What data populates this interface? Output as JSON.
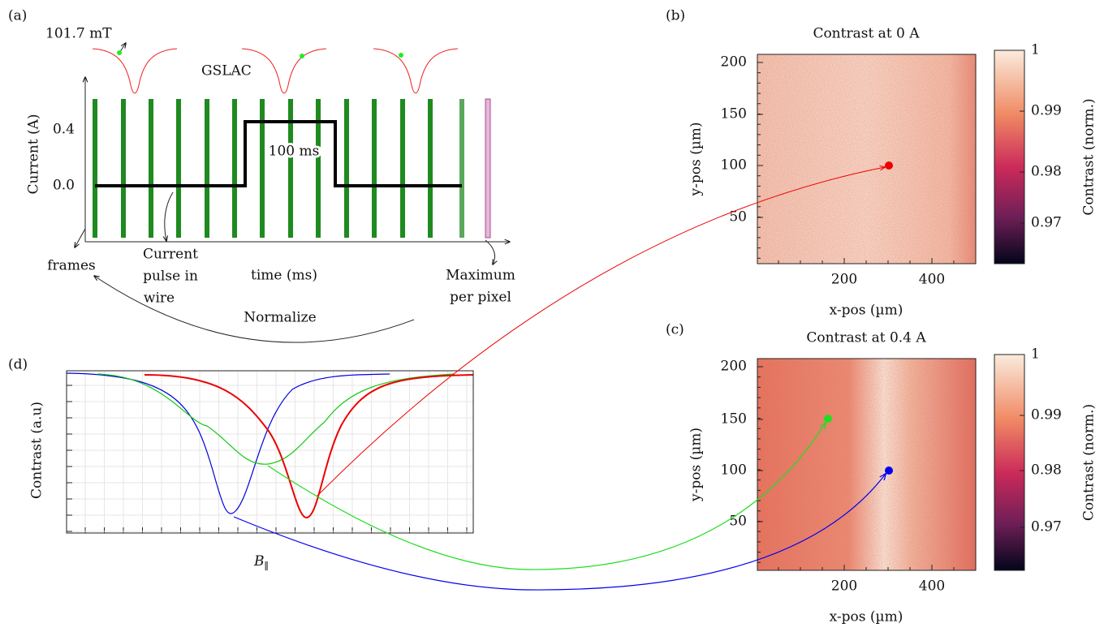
{
  "panel_a": {
    "label": "(a)",
    "field": "101.7 mT",
    "gslac": "GSLAC",
    "y_axis_label": "Current (A)",
    "yticks": [
      "0.4",
      "0.0"
    ],
    "pulse_duration": "100 ms",
    "x_axis_label": "time (ms)",
    "frames": "frames",
    "pulse_note": [
      "Current",
      "pulse in",
      "wire"
    ],
    "maximum_note": [
      "Maximum",
      "per pixel"
    ],
    "normalize": "Normalize"
  },
  "panel_b": {
    "label": "(b)",
    "title": "Contrast at 0 A",
    "x_axis_label": "x-pos (µm)",
    "y_axis_label": "y-pos (µm)",
    "xticks": [
      "200",
      "400"
    ],
    "yticks": [
      "200",
      "150",
      "100",
      "50"
    ],
    "colorbar_label": "Contrast (norm.)",
    "colorbar_ticks": [
      "1",
      "0.99",
      "0.98",
      "0.97"
    ]
  },
  "panel_c": {
    "label": "(c)",
    "title": "Contrast at 0.4 A",
    "x_axis_label": "x-pos (µm)",
    "y_axis_label": "y-pos (µm)",
    "xticks": [
      "200",
      "400"
    ],
    "yticks": [
      "200",
      "150",
      "100",
      "50"
    ],
    "colorbar_label": "Contrast (norm.)",
    "colorbar_ticks": [
      "1",
      "0.99",
      "0.98",
      "0.97"
    ]
  },
  "panel_d": {
    "label": "(d)",
    "y_axis_label": "Contrast (a.u)",
    "x_axis_label": {
      "symbol": "B",
      "subscript": "∥"
    }
  }
}
